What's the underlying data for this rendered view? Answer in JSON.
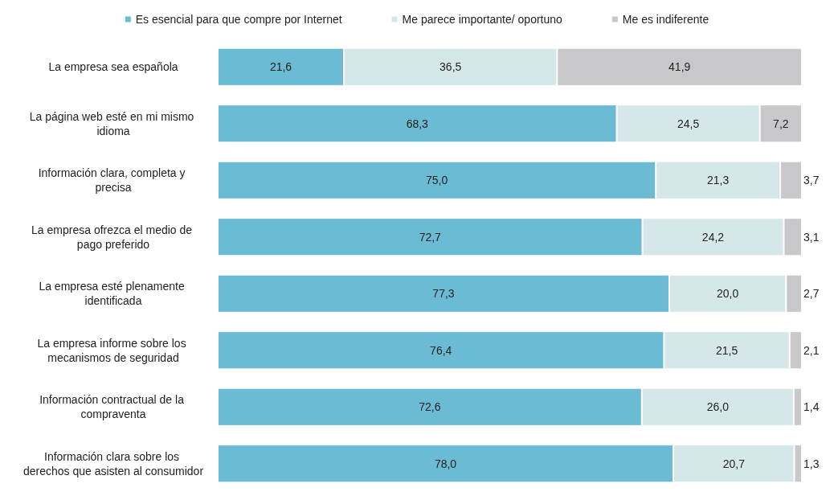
{
  "chart_data": {
    "type": "bar",
    "orientation": "horizontal",
    "stacked": true,
    "legend": "top",
    "tick_labels": "y",
    "xlim": [
      0,
      100
    ],
    "categories": [
      "La empresa sea española",
      "La página web esté en mi mismo idioma",
      "Información clara, completa y precisa",
      "La empresa ofrezca el medio de pago preferido",
      "La empresa esté plenamente identificada",
      "La empresa informe sobre los mecanismos de seguridad",
      "Información contractual de la compraventa",
      "Información clara sobre los derechos que asisten al consumidor"
    ],
    "series": [
      {
        "name": "Es esencial para que compre por Internet",
        "color": "#6abbd3",
        "values": [
          21.6,
          68.3,
          75.0,
          72.7,
          77.3,
          76.4,
          72.6,
          78.0
        ],
        "value_labels": [
          "21,6",
          "68,3",
          "75,0",
          "72,7",
          "77,3",
          "76,4",
          "72,6",
          "78,0"
        ]
      },
      {
        "name": "Me parece importante/ oportuno",
        "color": "#d6e7e9",
        "values": [
          36.5,
          24.5,
          21.3,
          24.2,
          20.0,
          21.5,
          26.0,
          20.7
        ],
        "value_labels": [
          "36,5",
          "24,5",
          "21,3",
          "24,2",
          "20,0",
          "21,5",
          "26,0",
          "20,7"
        ]
      },
      {
        "name": "Me es indiferente",
        "color": "#c8c8ca",
        "values": [
          41.9,
          7.2,
          3.7,
          3.1,
          2.7,
          2.1,
          1.4,
          1.3
        ],
        "value_labels": [
          "41,9",
          "7,2",
          "3,7",
          "3,1",
          "2,7",
          "2,1",
          "1,4",
          "1,3"
        ]
      }
    ]
  }
}
